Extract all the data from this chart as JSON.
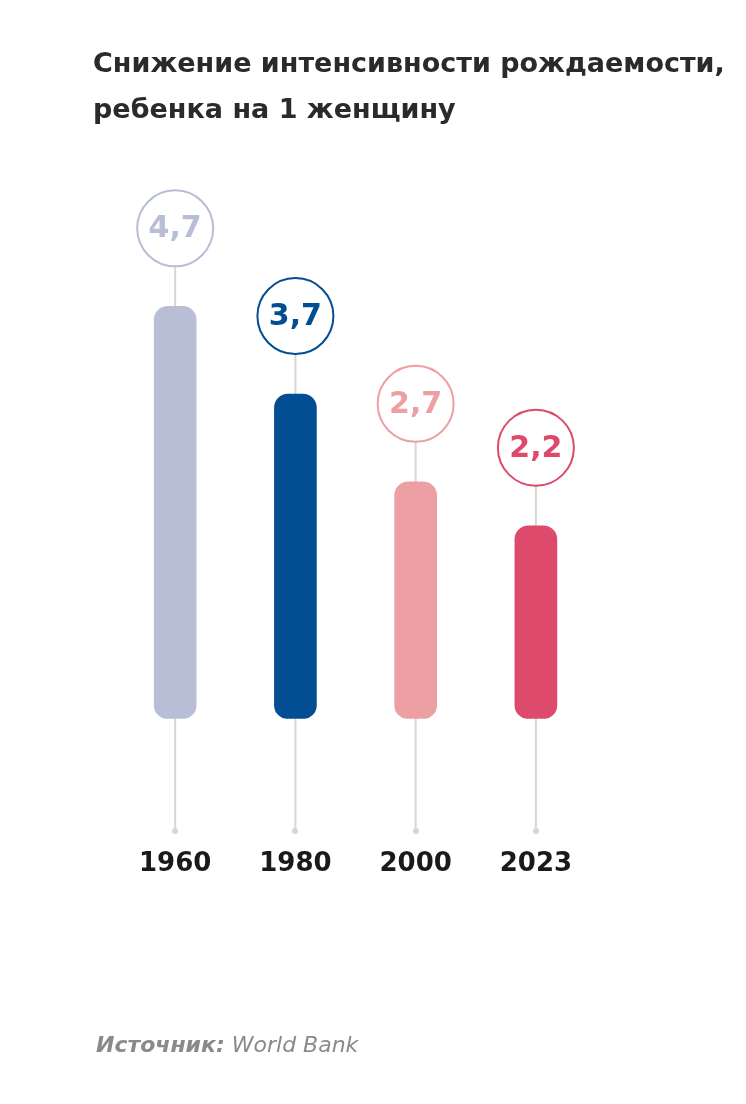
{
  "chart_data": {
    "type": "bar",
    "title": "Снижение интенсивности рождаемости, ребенка на 1 женщину",
    "categories": [
      "1960",
      "1980",
      "2000",
      "2023"
    ],
    "values": [
      4.7,
      3.7,
      2.7,
      2.2
    ],
    "value_labels": [
      "4,7",
      "3,7",
      "2,7",
      "2,2"
    ],
    "colors": [
      "#b8bed6",
      "#034e93",
      "#eda0a4",
      "#de4a6c"
    ],
    "grid": "x",
    "annotations": [
      "Источник: World Bank"
    ]
  }
}
